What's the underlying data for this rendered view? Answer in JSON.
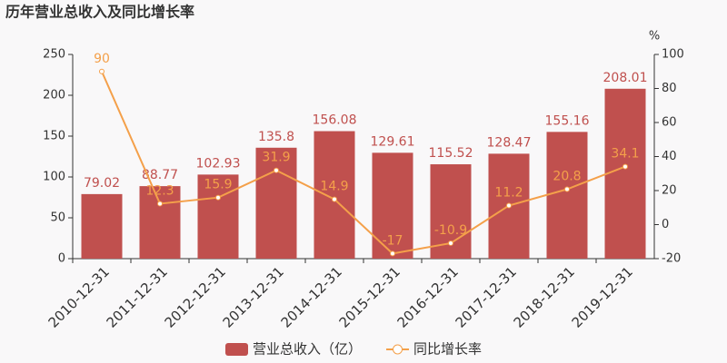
{
  "chart_data": {
    "type": "bar",
    "title": "历年营业总收入及同比增长率",
    "categories": [
      "2010-12-31",
      "2011-12-31",
      "2012-12-31",
      "2013-12-31",
      "2014-12-31",
      "2015-12-31",
      "2016-12-31",
      "2017-12-31",
      "2018-12-31",
      "2019-12-31"
    ],
    "series": [
      {
        "name": "营业总收入（亿）",
        "type": "bar",
        "color": "#c0504e",
        "values": [
          79.02,
          88.77,
          102.93,
          135.8,
          156.08,
          129.61,
          115.52,
          128.47,
          155.16,
          208.01
        ]
      },
      {
        "name": "同比增长率",
        "type": "line",
        "axis": "y2",
        "color": "#f4a04a",
        "values": [
          90,
          12.3,
          15.9,
          31.9,
          14.9,
          -17,
          -10.9,
          11.2,
          20.8,
          34.1
        ]
      }
    ],
    "ylim": [
      0,
      250
    ],
    "yticks": [
      0,
      50,
      100,
      150,
      200,
      250
    ],
    "y2lim": [
      -20,
      100
    ],
    "y2ticks": [
      -20,
      0,
      20,
      40,
      60,
      80,
      100
    ],
    "y2label": "%",
    "grid": false,
    "legend": "bottom"
  }
}
